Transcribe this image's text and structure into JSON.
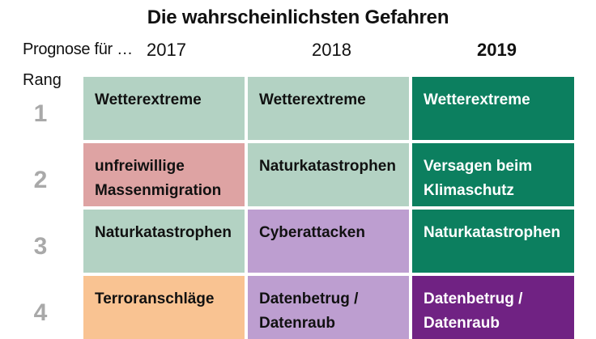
{
  "title": "Die wahrscheinlichsten Gefahren",
  "forecast_label": "Prognose für …",
  "rank_label": "Rang",
  "years": [
    "2017",
    "2018",
    "2019"
  ],
  "ranks": [
    "1",
    "2",
    "3",
    "4"
  ],
  "colors": {
    "weather_light": "#b3d2c3",
    "weather_dark": "#0c7f5f",
    "migration": "#dea3a3",
    "cyber": "#bd9ed0",
    "terror": "#f9c392",
    "data_dark": "#702283"
  },
  "rows": [
    [
      "Wetterextreme",
      "Wetterextreme",
      "Wetterextreme"
    ],
    [
      "unfreiwillige Massenmigration",
      "Naturkatastrophen",
      "Versagen beim Klimaschutz"
    ],
    [
      "Naturkatastrophen",
      "Cyberattacken",
      "Naturkatastrophen"
    ],
    [
      "Terroranschläge",
      "Datenbetrug / Datenraub",
      "Datenbetrug / Datenraub"
    ]
  ]
}
